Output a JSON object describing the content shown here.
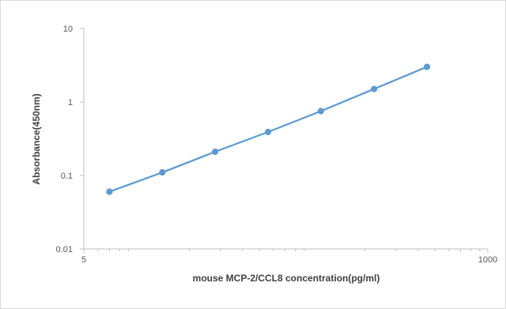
{
  "chart_data": {
    "type": "line",
    "title": "",
    "xlabel": "mouse MCP-2/CCL8 concentration(pg/ml)",
    "ylabel": "Absorbance(450nm)",
    "x_scale": "log",
    "y_scale": "log",
    "xlim": [
      5,
      1000
    ],
    "ylim": [
      0.01,
      10
    ],
    "x_tick_labels": [
      "5",
      "1000"
    ],
    "y_tick_labels": [
      "10",
      "1",
      "0.1",
      "0.01"
    ],
    "grid": false,
    "legend": "none",
    "series": [
      {
        "color": "#5b9bd5",
        "marker": "circle",
        "x": [
          7.0,
          14.0,
          28.0,
          56.0,
          112.0,
          225.0,
          450.0
        ],
        "y": [
          0.06,
          0.11,
          0.21,
          0.39,
          0.75,
          1.5,
          3.0
        ]
      }
    ]
  }
}
